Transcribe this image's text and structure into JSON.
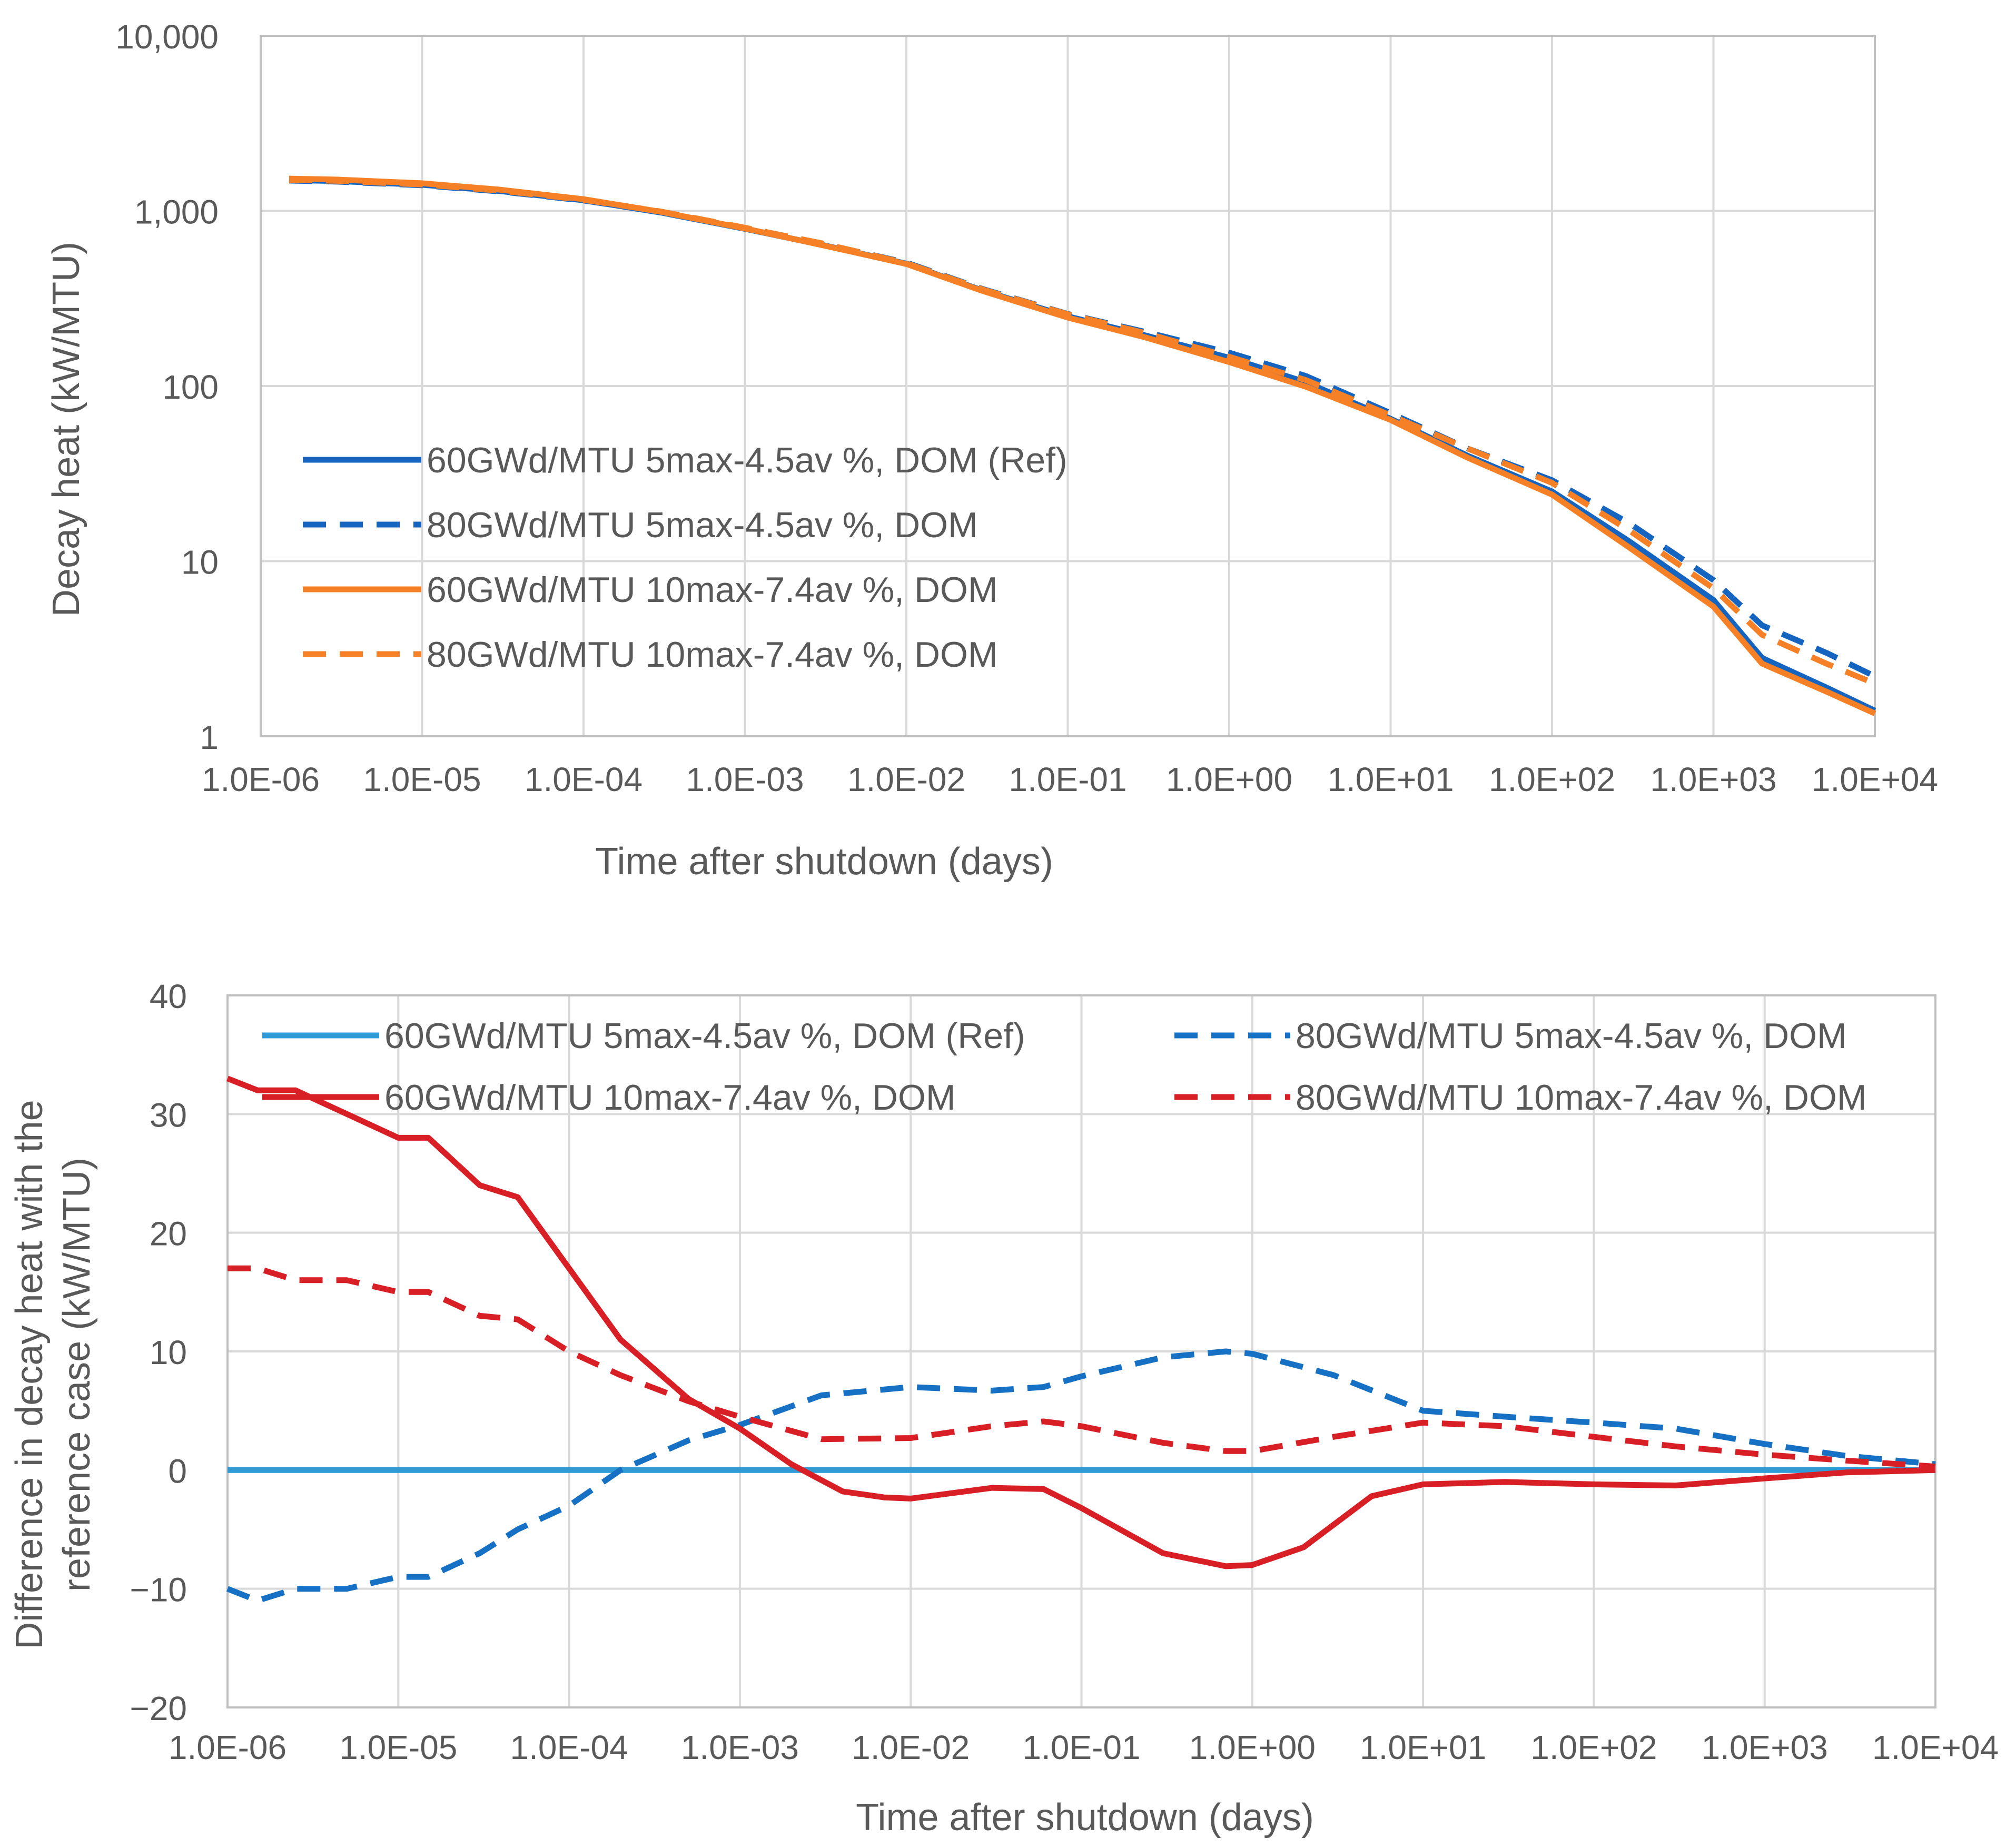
{
  "chart_data": [
    {
      "type": "line",
      "title": "",
      "xlabel": "Time after shutdown (days)",
      "ylabel": "Decay heat (kW/MTU)",
      "xscale": "log",
      "yscale": "log",
      "xlim": [
        1e-06,
        10000.0
      ],
      "ylim": [
        1,
        10000
      ],
      "grid": true,
      "legend_position": "middle-left",
      "x_ticks": [
        1e-06,
        1e-05,
        0.0001,
        0.001,
        0.01,
        0.1,
        1.0,
        10.0,
        100.0,
        1000.0,
        10000.0
      ],
      "x_tick_labels": [
        "1.0E-06",
        "1.0E-05",
        "1.0E-04",
        "1.0E-03",
        "1.0E-02",
        "1.0E-01",
        "1.0E+00",
        "1.0E+01",
        "1.0E+02",
        "1.0E+03",
        "1.0E+04"
      ],
      "y_ticks": [
        1,
        10,
        100,
        1000,
        10000
      ],
      "y_tick_labels": [
        "1",
        "10",
        "100",
        "1,000",
        "10,000"
      ],
      "x": [
        1.5e-06,
        3e-06,
        1e-05,
        3e-05,
        0.0001,
        0.0003,
        0.001,
        0.003,
        0.01,
        0.03,
        0.1,
        0.3,
        1.0,
        3.0,
        10.0,
        30.0,
        100.0,
        300.0,
        1000.0,
        2000.0,
        5000.0,
        10000.0
      ],
      "series": [
        {
          "name": "60GWd/MTU 5max-4.5av %, DOM (Ref)",
          "color": "#1565C0",
          "dash": "solid",
          "values": [
            1500,
            1480,
            1410,
            1300,
            1150,
            980,
            790,
            640,
            500,
            350,
            250,
            195,
            145,
            105,
            65,
            40,
            25,
            13,
            6,
            2.8,
            1.9,
            1.4
          ]
        },
        {
          "name": "80GWd/MTU 5max-4.5av %, DOM",
          "color": "#1565C0",
          "dash": "dashed",
          "values": [
            1490,
            1470,
            1400,
            1293,
            1147,
            985,
            798,
            650,
            507,
            357,
            258,
            204,
            155,
            114,
            70,
            44,
            29,
            16.5,
            7.8,
            4.3,
            3.0,
            2.2
          ]
        },
        {
          "name": "60GWd/MTU 10max-7.4av %, DOM",
          "color": "#F58025",
          "dash": "solid",
          "values": [
            1530,
            1510,
            1438,
            1324,
            1167,
            989,
            794,
            638,
            498,
            348,
            246,
            190,
            137,
            99,
            64,
            39,
            24,
            12,
            5.5,
            2.6,
            1.8,
            1.35
          ]
        },
        {
          "name": "80GWd/MTU 10max-7.4av %, DOM",
          "color": "#F58025",
          "dash": "dashed",
          "values": [
            1505,
            1485,
            1415,
            1306,
            1157,
            993,
            802,
            653,
            503,
            355,
            257,
            201,
            147,
            108,
            68,
            44,
            28,
            15,
            7,
            3.8,
            2.6,
            2.0
          ]
        }
      ]
    },
    {
      "type": "line",
      "title": "",
      "xlabel": "Time after shutdown (days)",
      "ylabel": "Difference in decay heat with the reference case (kW/MTU)",
      "ylabel_lines": [
        "Difference in decay heat with the",
        "reference case (kW/MTU)"
      ],
      "xscale": "log",
      "yscale": "linear",
      "xlim": [
        1e-06,
        10000.0
      ],
      "ylim": [
        -20,
        40
      ],
      "grid": true,
      "legend_position": "top",
      "x_ticks": [
        1e-06,
        1e-05,
        0.0001,
        0.001,
        0.01,
        0.1,
        1.0,
        10.0,
        100.0,
        1000.0,
        10000.0
      ],
      "x_tick_labels": [
        "1.0E-06",
        "1.0E-05",
        "1.0E-04",
        "1.0E-03",
        "1.0E-02",
        "1.0E-01",
        "1.0E+00",
        "1.0E+01",
        "1.0E+02",
        "1.0E+03",
        "1.0E+04"
      ],
      "y_ticks": [
        -20,
        -10,
        0,
        10,
        20,
        30,
        40
      ],
      "y_tick_labels": [
        "−20",
        "−10",
        "0",
        "10",
        "20",
        "30",
        "40"
      ],
      "series": [
        {
          "name": "60GWd/MTU 5max-4.5av %,  DOM (Ref)",
          "color": "#2E9BD6",
          "dash": "solid",
          "x": [
            1e-06,
            10000.0
          ],
          "values": [
            0,
            0
          ]
        },
        {
          "name": "80GWd/MTU 5max-4.5av %, DOM",
          "color": "#1670C4",
          "dash": "dashed",
          "x": [
            1e-06,
            1.5e-06,
            2.5e-06,
            5e-06,
            1e-05,
            1.5e-05,
            3e-05,
            5e-05,
            0.0001,
            0.0002,
            0.0005,
            0.001,
            0.003,
            0.01,
            0.03,
            0.06,
            0.1,
            0.3,
            0.7,
            1.0,
            3.0,
            10.0,
            30.0,
            100.0,
            300.0,
            1000.0,
            3000.0,
            10000.0
          ],
          "values": [
            -10,
            -11,
            -10,
            -10,
            -9,
            -9,
            -7,
            -5,
            -3,
            0,
            2.5,
            3.8,
            6.3,
            7,
            6.7,
            7,
            7.9,
            9.5,
            10,
            9.8,
            8,
            5,
            4.5,
            4,
            3.5,
            2.2,
            1.2,
            0.5
          ]
        },
        {
          "name": "60GWd/MTU 10max-7.4av %, DOM",
          "color": "#D81F26",
          "dash": "solid",
          "x": [
            1e-06,
            1.5e-06,
            2.5e-06,
            5e-06,
            1e-05,
            1.5e-05,
            3e-05,
            5e-05,
            0.0001,
            0.0002,
            0.0005,
            0.001,
            0.002,
            0.004,
            0.007,
            0.01,
            0.03,
            0.06,
            0.1,
            0.3,
            0.7,
            1.0,
            2.0,
            5.0,
            10.0,
            30.0,
            100.0,
            300.0,
            1000.0,
            3000.0,
            10000.0
          ],
          "values": [
            33,
            32,
            32,
            30,
            28,
            28,
            24,
            23,
            17,
            11,
            6,
            3.5,
            0.5,
            -1.8,
            -2.3,
            -2.4,
            -1.5,
            -1.6,
            -3.2,
            -7,
            -8.1,
            -8,
            -6.5,
            -2.2,
            -1.2,
            -1,
            -1.2,
            -1.3,
            -0.7,
            -0.2,
            0
          ]
        },
        {
          "name": "80GWd/MTU 10max-7.4av %, DOM",
          "color": "#D81F26",
          "dash": "dashed",
          "x": [
            1e-06,
            1.5e-06,
            2.5e-06,
            5e-06,
            1e-05,
            1.5e-05,
            3e-05,
            5e-05,
            0.0001,
            0.0002,
            0.0005,
            0.001,
            0.003,
            0.01,
            0.03,
            0.06,
            0.1,
            0.3,
            0.7,
            1.0,
            3.0,
            10.0,
            30.0,
            100.0,
            300.0,
            1000.0,
            3000.0,
            10000.0
          ],
          "values": [
            17,
            17,
            16,
            16,
            15,
            15,
            13,
            12.7,
            10,
            8,
            5.8,
            4.5,
            2.6,
            2.7,
            3.7,
            4.1,
            3.7,
            2.3,
            1.6,
            1.6,
            2.8,
            4,
            3.7,
            2.8,
            2,
            1.3,
            0.8,
            0.3
          ]
        }
      ]
    }
  ]
}
